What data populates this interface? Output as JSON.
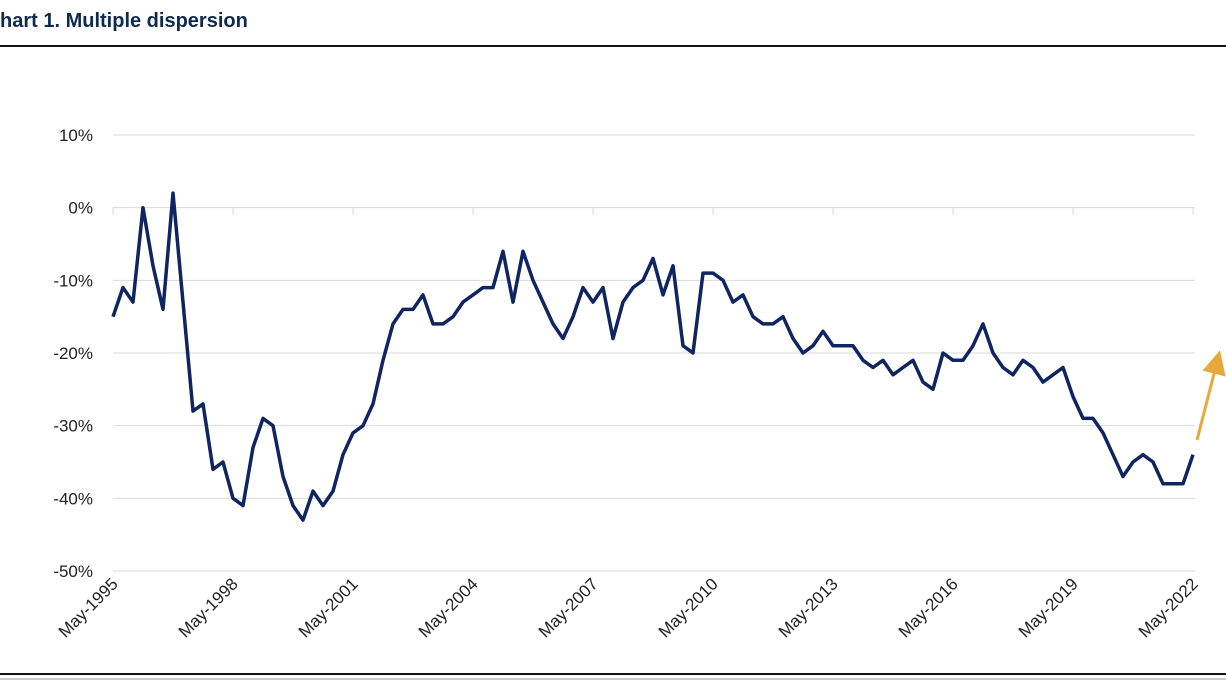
{
  "chart_data": {
    "type": "line",
    "title": "hart 1. Multiple dispersion",
    "color": "#0f2461",
    "x": [
      "1995-05",
      "1995-08",
      "1995-11",
      "1996-02",
      "1996-05",
      "1996-08",
      "1996-11",
      "1997-02",
      "1997-05",
      "1997-08",
      "1997-11",
      "1998-02",
      "1998-05",
      "1998-08",
      "1998-11",
      "1999-02",
      "1999-05",
      "1999-08",
      "1999-11",
      "2000-02",
      "2000-05",
      "2000-08",
      "2000-11",
      "2001-02",
      "2001-05",
      "2001-08",
      "2001-11",
      "2002-02",
      "2002-05",
      "2002-08",
      "2002-11",
      "2003-02",
      "2003-05",
      "2003-08",
      "2003-11",
      "2004-02",
      "2004-05",
      "2004-08",
      "2004-11",
      "2005-02",
      "2005-05",
      "2005-08",
      "2005-11",
      "2006-02",
      "2006-05",
      "2006-08",
      "2006-11",
      "2007-02",
      "2007-05",
      "2007-08",
      "2007-11",
      "2008-02",
      "2008-05",
      "2008-08",
      "2008-11",
      "2009-02",
      "2009-05",
      "2009-08",
      "2009-11",
      "2010-02",
      "2010-05",
      "2010-08",
      "2010-11",
      "2011-02",
      "2011-05",
      "2011-08",
      "2011-11",
      "2012-02",
      "2012-05",
      "2012-08",
      "2012-11",
      "2013-02",
      "2013-05",
      "2013-08",
      "2013-11",
      "2014-02",
      "2014-05",
      "2014-08",
      "2014-11",
      "2015-02",
      "2015-05",
      "2015-08",
      "2015-11",
      "2016-02",
      "2016-05",
      "2016-08",
      "2016-11",
      "2017-02",
      "2017-05",
      "2017-08",
      "2017-11",
      "2018-02",
      "2018-05",
      "2018-08",
      "2018-11",
      "2019-02",
      "2019-05",
      "2019-08",
      "2019-11",
      "2020-02",
      "2020-05",
      "2020-08",
      "2020-11",
      "2021-02",
      "2021-05",
      "2021-08",
      "2021-11",
      "2022-02",
      "2022-05"
    ],
    "values": [
      -15,
      -11,
      -13,
      0,
      -8,
      -14,
      2,
      -13,
      -28,
      -27,
      -36,
      -35,
      -40,
      -41,
      -33,
      -29,
      -30,
      -37,
      -41,
      -43,
      -39,
      -41,
      -39,
      -34,
      -31,
      -30,
      -27,
      -21,
      -16,
      -14,
      -14,
      -12,
      -16,
      -16,
      -15,
      -13,
      -12,
      -11,
      -11,
      -6,
      -13,
      -6,
      -10,
      -13,
      -16,
      -18,
      -15,
      -11,
      -13,
      -11,
      -18,
      -13,
      -11,
      -10,
      -7,
      -12,
      -8,
      -19,
      -20,
      -9,
      -9,
      -10,
      -13,
      -12,
      -15,
      -16,
      -16,
      -15,
      -18,
      -20,
      -19,
      -17,
      -19,
      -19,
      -19,
      -21,
      -22,
      -21,
      -23,
      -22,
      -21,
      -24,
      -25,
      -20,
      -21,
      -21,
      -19,
      -16,
      -20,
      -22,
      -23,
      -21,
      -22,
      -24,
      -23,
      -22,
      -26,
      -29,
      -29,
      -31,
      -34,
      -37,
      -35,
      -34,
      -35,
      -38,
      -38,
      -38,
      -34
    ],
    "xlim": [
      "1995-05",
      "2022-05"
    ],
    "xticks": [
      {
        "value": "1995-05",
        "label": "May-1995"
      },
      {
        "value": "1998-05",
        "label": "May-1998"
      },
      {
        "value": "2001-05",
        "label": "May-2001"
      },
      {
        "value": "2004-05",
        "label": "May-2004"
      },
      {
        "value": "2007-05",
        "label": "May-2007"
      },
      {
        "value": "2010-05",
        "label": "May-2010"
      },
      {
        "value": "2013-05",
        "label": "May-2013"
      },
      {
        "value": "2016-05",
        "label": "May-2016"
      },
      {
        "value": "2019-05",
        "label": "May-2019"
      },
      {
        "value": "2022-05",
        "label": "May-2022"
      }
    ],
    "ylim": [
      -50,
      10
    ],
    "yticks": [
      {
        "value": -50,
        "label": "-50%"
      },
      {
        "value": -40,
        "label": "-40%"
      },
      {
        "value": -30,
        "label": "-30%"
      },
      {
        "value": -20,
        "label": "-20%"
      },
      {
        "value": -10,
        "label": "-10%"
      },
      {
        "value": 0,
        "label": "0%"
      },
      {
        "value": 10,
        "label": "10%"
      }
    ],
    "grid": true
  }
}
